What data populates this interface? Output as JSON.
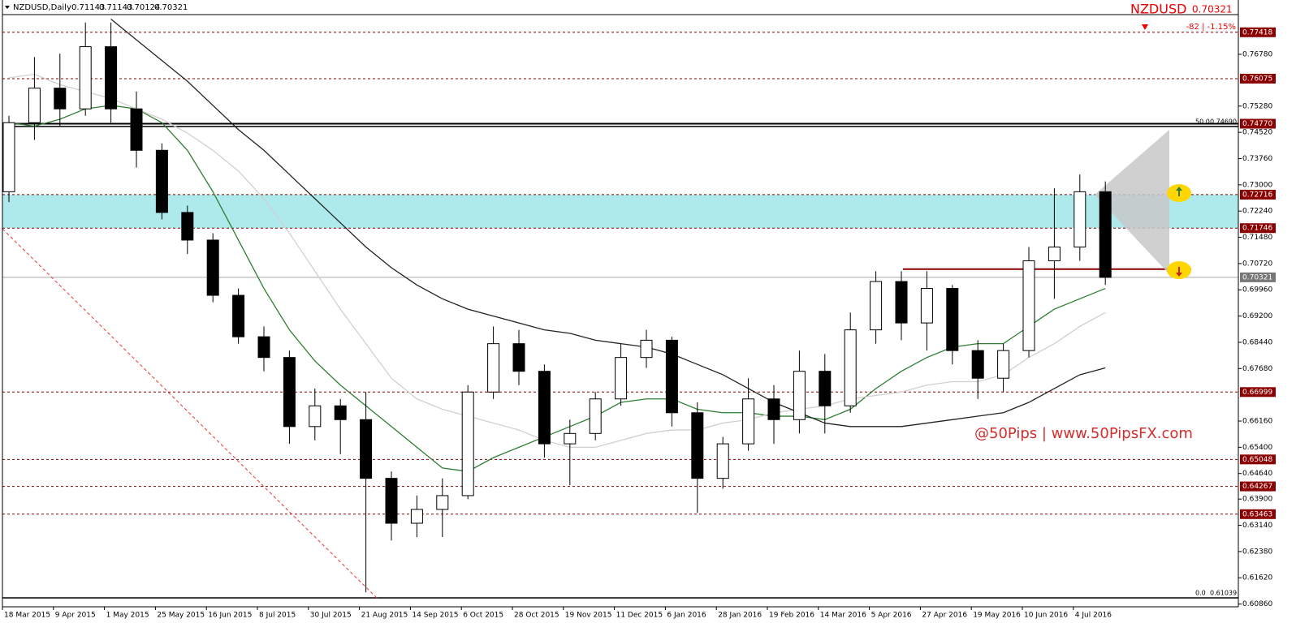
{
  "chart_data": {
    "type": "candlestick",
    "header": {
      "symbol_timeframe": "NZDUSD,Daily",
      "open": 0.71143,
      "high": 0.71143,
      "low": 0.70124,
      "close": 0.70321
    },
    "corner_symbol": "NZDUSD",
    "change_text": "-82 | -1.15%",
    "watermark": "@50Pips | www.50PipsFX.com",
    "categories": [
      "18 Mar 2015",
      null,
      "9 Apr 2015",
      null,
      "1 May 2015",
      null,
      "25 May 2015",
      null,
      "16 Jun 2015",
      null,
      "8 Jul 2015",
      null,
      "30 Jul 2015",
      null,
      "21 Aug 2015",
      null,
      "14 Sep 2015",
      null,
      "6 Oct 2015",
      null,
      "28 Oct 2015",
      null,
      "19 Nov 2015",
      null,
      "11 Dec 2015",
      null,
      "6 Jan 2016",
      null,
      "28 Jan 2016",
      null,
      "19 Feb 2016",
      null,
      "14 Mar 2016",
      null,
      "5 Apr 2016",
      null,
      "27 Apr 2016",
      null,
      "19 May 2016",
      null,
      "10 Jun 2016",
      null,
      "4 Jul 2016",
      null
    ],
    "open": [
      0.728,
      0.748,
      0.758,
      0.752,
      0.77,
      0.752,
      0.74,
      0.722,
      0.714,
      0.698,
      0.686,
      0.68,
      0.66,
      0.666,
      0.662,
      0.645,
      0.632,
      0.636,
      0.64,
      0.67,
      0.684,
      0.676,
      0.655,
      0.658,
      0.668,
      0.68,
      0.685,
      0.664,
      0.645,
      0.655,
      0.668,
      0.662,
      0.676,
      0.666,
      0.688,
      0.702,
      0.69,
      0.7,
      0.682,
      0.674,
      0.682,
      0.708,
      0.712,
      0.728
    ],
    "high": [
      0.75,
      0.767,
      0.768,
      0.777,
      0.777,
      0.757,
      0.742,
      0.724,
      0.716,
      0.7,
      0.689,
      0.682,
      0.671,
      0.668,
      0.67,
      0.647,
      0.64,
      0.645,
      0.672,
      0.689,
      0.688,
      0.678,
      0.662,
      0.67,
      0.684,
      0.688,
      0.686,
      0.667,
      0.657,
      0.674,
      0.672,
      0.682,
      0.681,
      0.693,
      0.705,
      0.705,
      0.705,
      0.701,
      0.685,
      0.684,
      0.712,
      0.729,
      0.733,
      0.731
    ],
    "low": [
      0.725,
      0.743,
      0.747,
      0.75,
      0.748,
      0.735,
      0.72,
      0.71,
      0.696,
      0.684,
      0.676,
      0.655,
      0.656,
      0.652,
      0.612,
      0.627,
      0.628,
      0.628,
      0.639,
      0.668,
      0.672,
      0.651,
      0.643,
      0.656,
      0.666,
      0.677,
      0.66,
      0.635,
      0.642,
      0.653,
      0.655,
      0.658,
      0.658,
      0.664,
      0.684,
      0.685,
      0.682,
      0.678,
      0.668,
      0.67,
      0.68,
      0.697,
      0.708,
      0.701
    ],
    "close": [
      0.748,
      0.758,
      0.752,
      0.77,
      0.752,
      0.74,
      0.722,
      0.714,
      0.698,
      0.686,
      0.68,
      0.66,
      0.666,
      0.662,
      0.645,
      0.632,
      0.636,
      0.64,
      0.67,
      0.684,
      0.676,
      0.655,
      0.658,
      0.668,
      0.68,
      0.685,
      0.664,
      0.645,
      0.655,
      0.668,
      0.662,
      0.676,
      0.666,
      0.688,
      0.702,
      0.69,
      0.7,
      0.682,
      0.674,
      0.682,
      0.708,
      0.712,
      0.728,
      0.7032
    ],
    "moving_averages": [
      {
        "color": "#2e7d32",
        "values": [
          0.748,
          0.747,
          0.749,
          0.752,
          0.753,
          0.752,
          0.748,
          0.74,
          0.728,
          0.714,
          0.7,
          0.688,
          0.679,
          0.672,
          0.666,
          0.66,
          0.654,
          0.648,
          0.647,
          0.651,
          0.654,
          0.657,
          0.66,
          0.663,
          0.667,
          0.668,
          0.668,
          0.665,
          0.664,
          0.664,
          0.663,
          0.663,
          0.662,
          0.665,
          0.671,
          0.676,
          0.68,
          0.683,
          0.684,
          0.684,
          0.689,
          0.694,
          0.697,
          0.7
        ]
      },
      {
        "color": "#d0d0d0",
        "values": [
          0.761,
          0.762,
          0.759,
          0.757,
          0.755,
          0.752,
          0.749,
          0.745,
          0.74,
          0.734,
          0.726,
          0.716,
          0.705,
          0.694,
          0.684,
          0.674,
          0.668,
          0.665,
          0.663,
          0.661,
          0.659,
          0.656,
          0.654,
          0.654,
          0.656,
          0.658,
          0.659,
          0.659,
          0.661,
          0.662,
          0.664,
          0.665,
          0.666,
          0.668,
          0.669,
          0.67,
          0.672,
          0.673,
          0.673,
          0.675,
          0.68,
          0.684,
          0.689,
          0.693
        ]
      },
      {
        "color": "#222222",
        "values": [
          null,
          null,
          null,
          null,
          0.778,
          0.772,
          0.766,
          0.76,
          0.753,
          0.746,
          0.74,
          0.733,
          0.726,
          0.719,
          0.712,
          0.706,
          0.701,
          0.697,
          0.694,
          0.692,
          0.69,
          0.688,
          0.687,
          0.685,
          0.684,
          0.683,
          0.681,
          0.678,
          0.675,
          0.671,
          0.667,
          0.664,
          0.661,
          0.66,
          0.66,
          0.66,
          0.661,
          0.662,
          0.663,
          0.664,
          0.667,
          0.671,
          0.675,
          0.677
        ]
      }
    ],
    "ylim": [
      0.6078,
      0.7793
    ],
    "yticks": [
      {
        "value": 0.7678,
        "label": "0.76780"
      },
      {
        "value": 0.7528,
        "label": "0.75280"
      },
      {
        "value": 0.7452,
        "label": "0.74520"
      },
      {
        "value": 0.7376,
        "label": "0.73760"
      },
      {
        "value": 0.73,
        "label": "0.73000"
      },
      {
        "value": 0.7224,
        "label": "0.72240"
      },
      {
        "value": 0.7148,
        "label": "0.71480"
      },
      {
        "value": 0.7072,
        "label": "0.70720"
      },
      {
        "value": 0.6996,
        "label": "0.69960"
      },
      {
        "value": 0.692,
        "label": "0.69200"
      },
      {
        "value": 0.6844,
        "label": "0.68440"
      },
      {
        "value": 0.6768,
        "label": "0.67680"
      },
      {
        "value": 0.6616,
        "label": "0.66160"
      },
      {
        "value": 0.654,
        "label": "0.65400"
      },
      {
        "value": 0.6464,
        "label": "0.64640"
      },
      {
        "value": 0.639,
        "label": "0.63900"
      },
      {
        "value": 0.6314,
        "label": "0.63140"
      },
      {
        "value": 0.6238,
        "label": "0.62380"
      },
      {
        "value": 0.6162,
        "label": "0.61620"
      },
      {
        "value": 0.6086,
        "label": "0.60860"
      }
    ],
    "levels": [
      {
        "price": 0.77418,
        "style": "dashed"
      },
      {
        "price": 0.76075,
        "style": "dashed"
      },
      {
        "price": {
          "value": 0.7477,
          "label": "0.74770"
        },
        "style": "solid"
      },
      {
        "price": 0.72716,
        "style": "dashed",
        "zone": true
      },
      {
        "price": 0.71746,
        "style": "dashed",
        "zone": true
      },
      {
        "price": 0.70321,
        "style": "current"
      },
      {
        "price": 0.66999,
        "style": "dashed"
      },
      {
        "price": 0.65048,
        "style": "dashed"
      },
      {
        "price": 0.64267,
        "style": "dashed"
      },
      {
        "price": 0.63463,
        "style": "dashed"
      }
    ],
    "zone_color": "#aee9ec",
    "support_line": 0.7056,
    "fibonacci": [
      {
        "label": "50.0",
        "price": {
          "value": 0.7469,
          "label": "0.74690"
        }
      },
      {
        "label": "0.0",
        "price": 0.61039
      }
    ]
  }
}
